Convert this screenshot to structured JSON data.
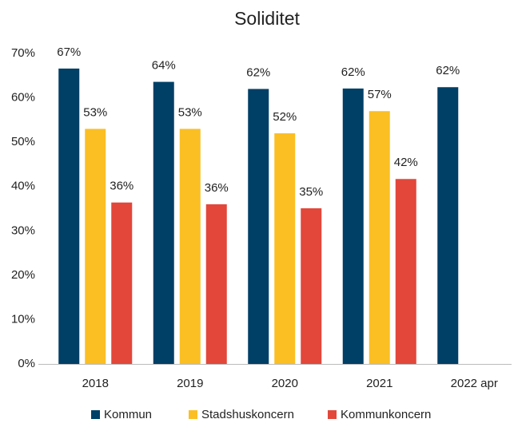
{
  "chart_data": {
    "type": "bar",
    "title": "Soliditet",
    "categories": [
      "2018",
      "2019",
      "2020",
      "2021",
      "2022 apr"
    ],
    "series": [
      {
        "name": "Kommun",
        "color": "#003f66",
        "values": [
          66.6,
          63.6,
          62,
          62.1,
          62.4
        ],
        "value_labels": [
          "67%",
          "64%",
          "62%",
          "62%",
          "62%"
        ]
      },
      {
        "name": "Stadshuskoncern",
        "color": "#fbbf24",
        "values": [
          53,
          53,
          52,
          57,
          null
        ],
        "value_labels": [
          "53%",
          "53%",
          "52%",
          "57%",
          null
        ]
      },
      {
        "name": "Kommunkoncern",
        "color": "#e2473a",
        "values": [
          36.4,
          36,
          35.1,
          41.7,
          null
        ],
        "value_labels": [
          "36%",
          "36%",
          "35%",
          "42%",
          null
        ]
      }
    ],
    "ylim": [
      0,
      70
    ],
    "yticks": [
      {
        "value": 0,
        "label": "0%"
      },
      {
        "value": 10,
        "label": "10%"
      },
      {
        "value": 20,
        "label": "20%"
      },
      {
        "value": 30,
        "label": "30%"
      },
      {
        "value": 40,
        "label": "40%"
      },
      {
        "value": 50,
        "label": "50%"
      },
      {
        "value": 60,
        "label": "60%"
      },
      {
        "value": 70,
        "label": "70%"
      }
    ],
    "grid": false,
    "legend": "bottom"
  }
}
